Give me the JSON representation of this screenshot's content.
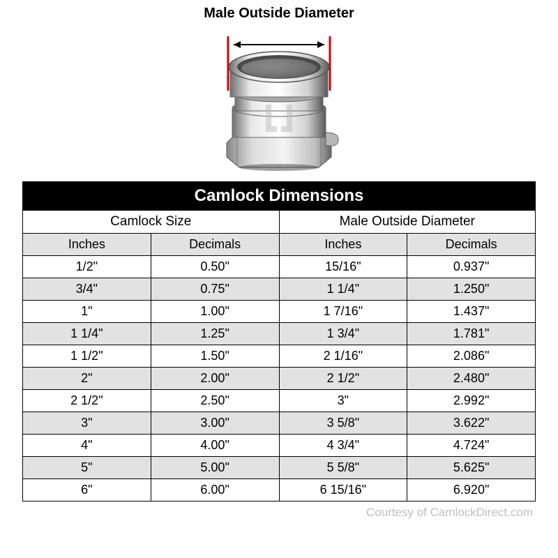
{
  "diagram": {
    "title": "Male Outside Diameter"
  },
  "table": {
    "title": "Camlock Dimensions",
    "group_headers": [
      "Camlock Size",
      "Male Outside Diameter"
    ],
    "unit_headers": [
      "Inches",
      "Decimals",
      "Inches",
      "Decimals"
    ],
    "rows": [
      [
        "1/2\"",
        "0.50\"",
        "15/16\"",
        "0.937\""
      ],
      [
        "3/4\"",
        "0.75\"",
        "1 1/4\"",
        "1.250\""
      ],
      [
        "1\"",
        "1.00\"",
        "1 7/16\"",
        "1.437\""
      ],
      [
        "1 1/4\"",
        "1.25\"",
        "1 3/4\"",
        "1.781\""
      ],
      [
        "1 1/2\"",
        "1.50\"",
        "2 1/16\"",
        "2.086\""
      ],
      [
        "2\"",
        "2.00\"",
        "2 1/2\"",
        "2.480\""
      ],
      [
        "2 1/2\"",
        "2.50\"",
        "3\"",
        "2.992\""
      ],
      [
        "3\"",
        "3.00\"",
        "3 5/8\"",
        "3.622\""
      ],
      [
        "4\"",
        "4.00\"",
        "4 3/4\"",
        "4.724\""
      ],
      [
        "5\"",
        "5.00\"",
        "5 5/8\"",
        "5.625\""
      ],
      [
        "6\"",
        "6.00\"",
        "6 15/16\"",
        "6.920\""
      ]
    ],
    "colors": {
      "header_bg": "#000000",
      "header_fg": "#ffffff",
      "alt_row_bg": "#e2e2e2",
      "row_bg": "#ffffff",
      "border": "#000000"
    }
  },
  "credit": "Courtesy of CamlockDirect.com"
}
